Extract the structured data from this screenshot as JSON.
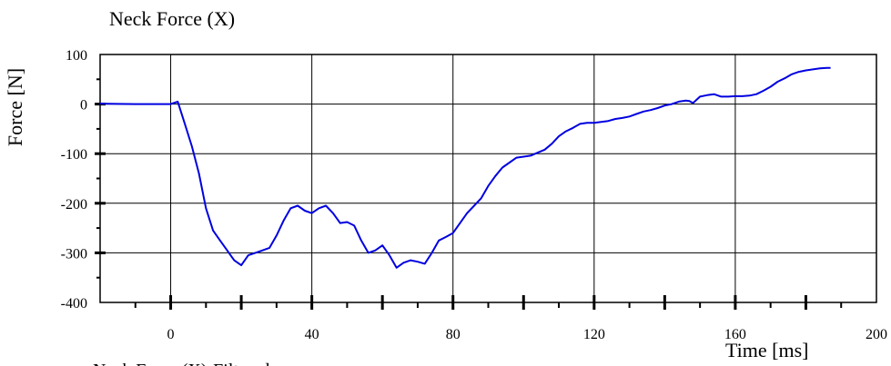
{
  "chart_data": {
    "type": "line",
    "title": "Neck Force (X)",
    "xlabel": "Time [ms]",
    "ylabel": "Force [N]",
    "xlim": [
      -20,
      200
    ],
    "ylim": [
      -400,
      100
    ],
    "xticks": [
      0,
      40,
      80,
      120,
      160,
      200
    ],
    "yticks": [
      100,
      0,
      -100,
      -200,
      -300,
      -400
    ],
    "grid": true,
    "legend": "bottom-left",
    "series": [
      {
        "name": "Neck Force (X)-Filtered",
        "color": "#0000e0",
        "x": [
          -20,
          -10,
          0,
          2,
          4,
          6,
          8,
          10,
          12,
          14,
          16,
          18,
          20,
          22,
          24,
          26,
          28,
          30,
          32,
          34,
          36,
          38,
          40,
          42,
          44,
          46,
          48,
          50,
          52,
          54,
          56,
          58,
          60,
          62,
          64,
          66,
          68,
          70,
          72,
          74,
          76,
          78,
          80,
          82,
          84,
          86,
          88,
          90,
          92,
          94,
          96,
          98,
          100,
          102,
          104,
          106,
          108,
          110,
          112,
          114,
          116,
          118,
          120,
          122,
          124,
          126,
          128,
          130,
          132,
          134,
          136,
          138,
          140,
          142,
          144,
          146,
          147,
          148,
          150,
          152,
          154,
          156,
          158,
          160,
          162,
          164,
          166,
          168,
          170,
          172,
          174,
          176,
          178,
          180,
          182,
          184,
          186,
          187
        ],
        "y": [
          1,
          0,
          0,
          5,
          -40,
          -85,
          -140,
          -210,
          -255,
          -275,
          -295,
          -315,
          -325,
          -305,
          -300,
          -295,
          -290,
          -265,
          -235,
          -210,
          -205,
          -215,
          -220,
          -210,
          -205,
          -220,
          -240,
          -238,
          -245,
          -275,
          -300,
          -295,
          -285,
          -305,
          -330,
          -320,
          -315,
          -318,
          -322,
          -300,
          -275,
          -268,
          -260,
          -240,
          -220,
          -205,
          -190,
          -165,
          -145,
          -128,
          -118,
          -108,
          -106,
          -104,
          -98,
          -92,
          -80,
          -65,
          -55,
          -48,
          -40,
          -38,
          -38,
          -36,
          -34,
          -30,
          -28,
          -25,
          -20,
          -15,
          -12,
          -8,
          -3,
          0,
          5,
          7,
          6,
          2,
          15,
          18,
          20,
          15,
          15,
          16,
          16,
          17,
          20,
          27,
          35,
          45,
          52,
          60,
          65,
          68,
          70,
          72,
          73,
          73
        ]
      }
    ]
  }
}
